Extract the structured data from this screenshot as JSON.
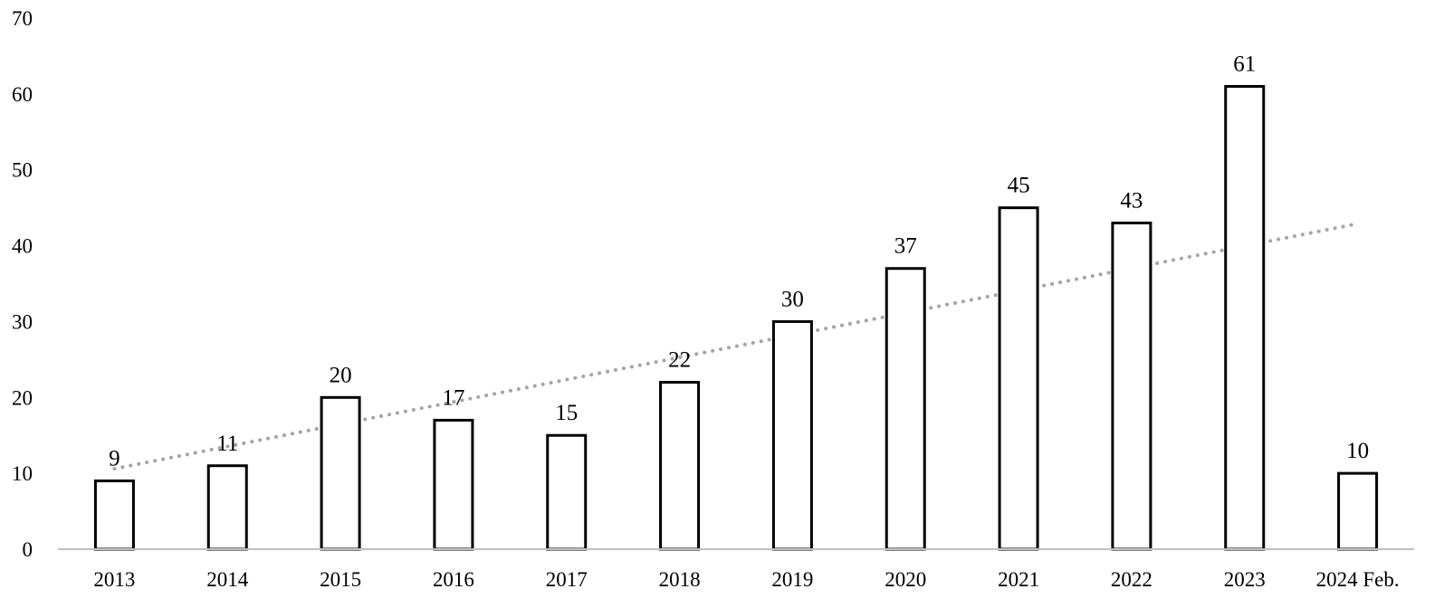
{
  "chart_data": {
    "type": "bar",
    "categories": [
      "2013",
      "2014",
      "2015",
      "2016",
      "2017",
      "2018",
      "2019",
      "2020",
      "2021",
      "2022",
      "2023",
      "2024 Feb."
    ],
    "values": [
      9,
      11,
      20,
      17,
      15,
      22,
      30,
      37,
      45,
      43,
      61,
      10
    ],
    "data_labels": [
      "9",
      "11",
      "20",
      "17",
      "15",
      "22",
      "30",
      "37",
      "45",
      "43",
      "61",
      "10"
    ],
    "ylim": [
      0,
      70
    ],
    "yticks": [
      0,
      10,
      20,
      30,
      40,
      50,
      60,
      70
    ],
    "ytick_labels": [
      "0",
      "10",
      "20",
      "30",
      "40",
      "50",
      "60",
      "70"
    ],
    "grid": false,
    "legend": "none",
    "title": "",
    "xlabel": "",
    "ylabel": "",
    "trendline": {
      "type": "linear",
      "style": "dotted",
      "start": {
        "category": "2013",
        "value": 10.6
      },
      "end": {
        "category": "2024 Feb.",
        "value": 42.9
      }
    },
    "colors": {
      "bar_fill": "#ffffff",
      "bar_stroke": "#000000",
      "axis": "#bfbfbf",
      "trendline": "#a6a6a6",
      "text": "#000000"
    }
  }
}
